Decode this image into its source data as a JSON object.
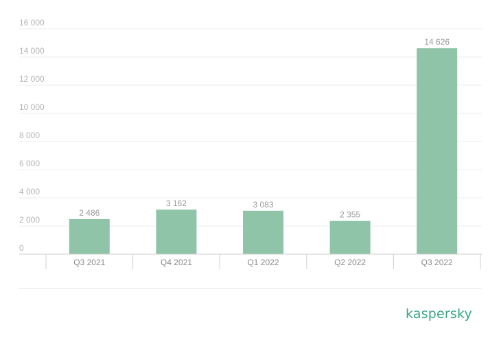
{
  "brand": {
    "logo_text": "kaspersky",
    "color": "#3aa589"
  },
  "chart_data": {
    "type": "bar",
    "categories": [
      "Q3 2021",
      "Q4 2021",
      "Q1 2022",
      "Q2 2022",
      "Q3 2022"
    ],
    "values": [
      2486,
      3162,
      3083,
      2355,
      14626
    ],
    "value_labels": [
      "2 486",
      "3 162",
      "3 083",
      "2 355",
      "14 626"
    ],
    "title": "",
    "xlabel": "",
    "ylabel": "",
    "ylim": [
      0,
      16000
    ],
    "yticks": [
      0,
      2000,
      4000,
      6000,
      8000,
      10000,
      12000,
      14000,
      16000
    ],
    "ytick_labels": [
      "0",
      "2 000",
      "4 000",
      "6 000",
      "8 000",
      "10 000",
      "12 000",
      "14 000",
      "16 000"
    ],
    "grid": true,
    "legend": "none",
    "bar_color": "#8fc4a8"
  }
}
